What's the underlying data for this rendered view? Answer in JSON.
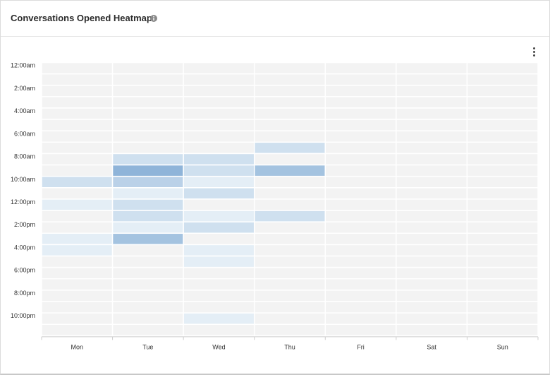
{
  "header": {
    "title": "Conversations Opened Heatmap",
    "info_icon": "info-icon",
    "menu_icon": "kebab-menu-icon"
  },
  "colors": {
    "empty_cell": "#f3f3f3",
    "scale_low": "#e4eef6",
    "scale_high": "#8fb4d9",
    "grid_line": "#ffffff"
  },
  "chart_data": {
    "type": "heatmap",
    "title": "Conversations Opened Heatmap",
    "x_categories": [
      "Mon",
      "Tue",
      "Wed",
      "Thu",
      "Fri",
      "Sat",
      "Sun"
    ],
    "y_categories": [
      "12:00am",
      "1:00am",
      "2:00am",
      "3:00am",
      "4:00am",
      "5:00am",
      "6:00am",
      "7:00am",
      "8:00am",
      "9:00am",
      "10:00am",
      "11:00am",
      "12:00pm",
      "1:00pm",
      "2:00pm",
      "3:00pm",
      "4:00pm",
      "5:00pm",
      "6:00pm",
      "7:00pm",
      "8:00pm",
      "9:00pm",
      "10:00pm",
      "11:00pm"
    ],
    "y_tick_labels": [
      "12:00am",
      "2:00am",
      "4:00am",
      "6:00am",
      "8:00am",
      "10:00am",
      "12:00pm",
      "2:00pm",
      "4:00pm",
      "6:00pm",
      "8:00pm",
      "10:00pm"
    ],
    "value_range": [
      0,
      5
    ],
    "cells": [
      {
        "day": "Mon",
        "hour": "10:00am",
        "value": 2
      },
      {
        "day": "Mon",
        "hour": "12:00pm",
        "value": 1
      },
      {
        "day": "Mon",
        "hour": "3:00pm",
        "value": 1
      },
      {
        "day": "Mon",
        "hour": "4:00pm",
        "value": 1
      },
      {
        "day": "Tue",
        "hour": "8:00am",
        "value": 2
      },
      {
        "day": "Tue",
        "hour": "9:00am",
        "value": 5
      },
      {
        "day": "Tue",
        "hour": "10:00am",
        "value": 3
      },
      {
        "day": "Tue",
        "hour": "11:00am",
        "value": 1
      },
      {
        "day": "Tue",
        "hour": "12:00pm",
        "value": 2
      },
      {
        "day": "Tue",
        "hour": "1:00pm",
        "value": 2
      },
      {
        "day": "Tue",
        "hour": "2:00pm",
        "value": 1
      },
      {
        "day": "Tue",
        "hour": "3:00pm",
        "value": 4
      },
      {
        "day": "Wed",
        "hour": "8:00am",
        "value": 2
      },
      {
        "day": "Wed",
        "hour": "9:00am",
        "value": 2
      },
      {
        "day": "Wed",
        "hour": "10:00am",
        "value": 1
      },
      {
        "day": "Wed",
        "hour": "11:00am",
        "value": 2
      },
      {
        "day": "Wed",
        "hour": "1:00pm",
        "value": 1
      },
      {
        "day": "Wed",
        "hour": "2:00pm",
        "value": 2
      },
      {
        "day": "Wed",
        "hour": "4:00pm",
        "value": 1
      },
      {
        "day": "Wed",
        "hour": "5:00pm",
        "value": 1
      },
      {
        "day": "Wed",
        "hour": "10:00pm",
        "value": 1
      },
      {
        "day": "Thu",
        "hour": "7:00am",
        "value": 2
      },
      {
        "day": "Thu",
        "hour": "9:00am",
        "value": 4
      },
      {
        "day": "Thu",
        "hour": "1:00pm",
        "value": 2
      }
    ]
  }
}
